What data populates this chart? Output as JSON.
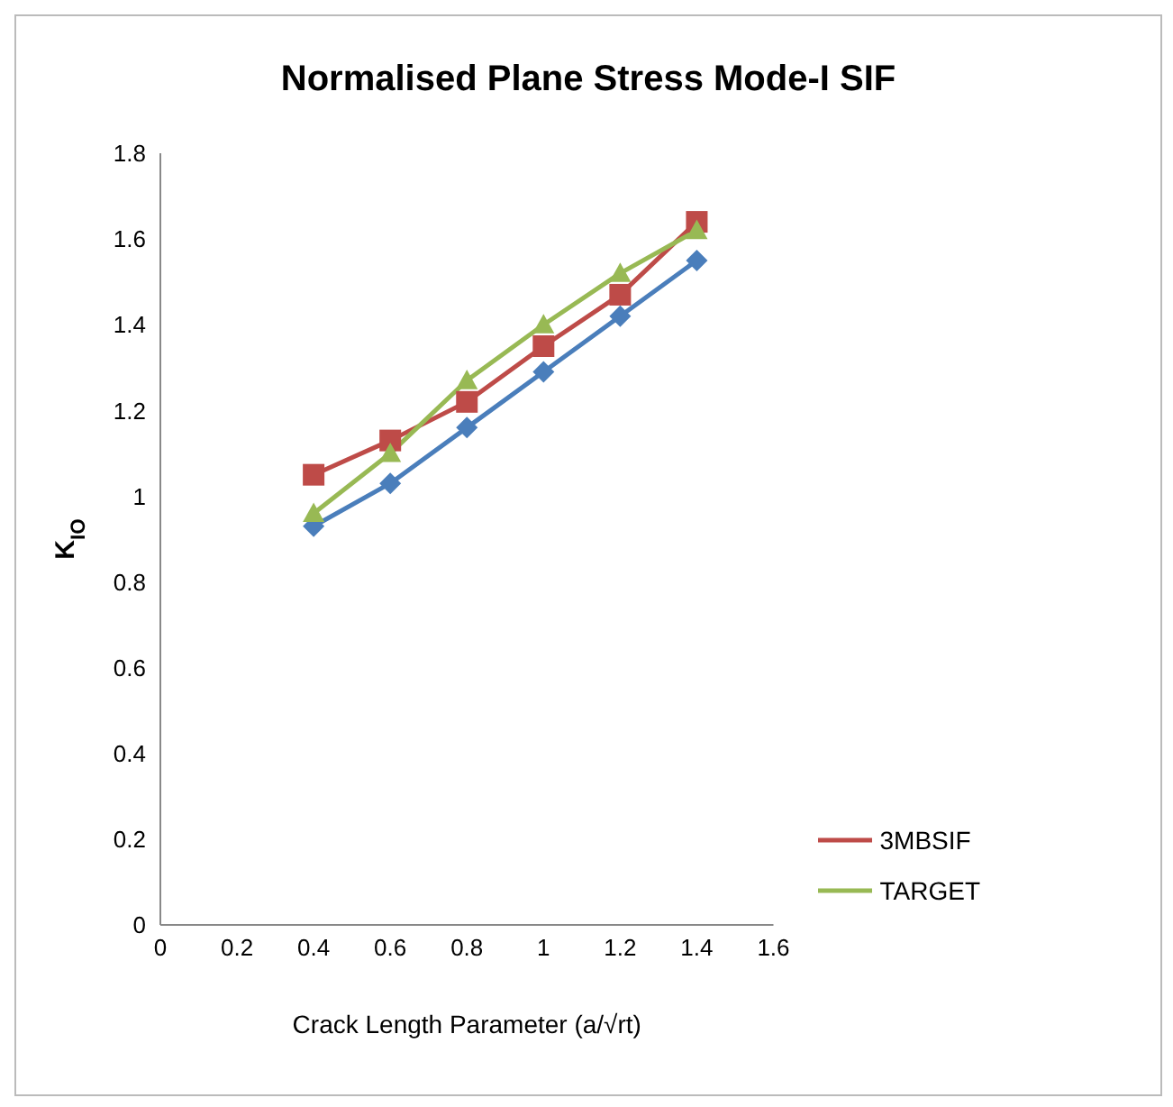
{
  "chart_data": {
    "type": "line",
    "title": "Normalised  Plane Stress  Mode-I SIF",
    "xlabel": "Crack Length Parameter (a/√rt)",
    "ylabel": "K$_{IO}$",
    "x": [
      0.4,
      0.6,
      0.8,
      1,
      1.2,
      1.4
    ],
    "series": [
      {
        "color": "#4a7ebb",
        "marker": "diamond",
        "values": [
          0.93,
          1.03,
          1.16,
          1.29,
          1.42,
          1.55
        ]
      },
      {
        "name": "3MBSIF",
        "color": "#be4b48",
        "marker": "square",
        "values": [
          1.05,
          1.13,
          1.22,
          1.35,
          1.47,
          1.64
        ]
      },
      {
        "name": "TARGET",
        "color": "#98b954",
        "marker": "triangle",
        "values": [
          0.96,
          1.1,
          1.27,
          1.4,
          1.52,
          1.62
        ]
      }
    ],
    "xlim": [
      0,
      1.6
    ],
    "xticks": [
      0,
      0.2,
      0.4,
      0.6,
      0.8,
      1,
      1.2,
      1.4,
      1.6
    ],
    "ylim": [
      0,
      1.8
    ],
    "yticks": [
      0,
      0.2,
      0.4,
      0.6,
      0.8,
      1,
      1.2,
      1.4,
      1.6,
      1.8
    ],
    "grid": false,
    "legend": "bottom right",
    "line_style": "solid"
  }
}
